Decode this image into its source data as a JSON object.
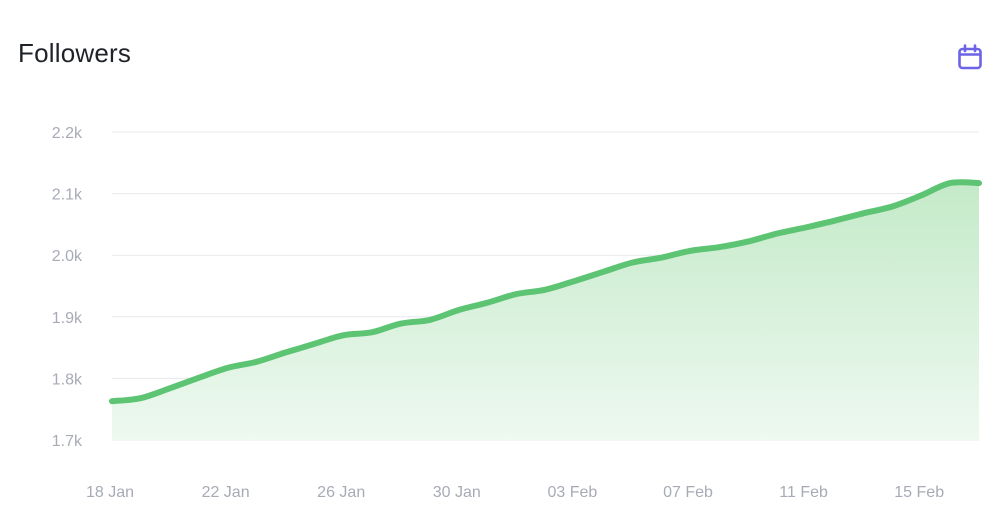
{
  "header": {
    "title": "Followers",
    "calendar_icon": "calendar-icon"
  },
  "colors": {
    "line": "#5cc472",
    "area_top": "#c4eac9",
    "area_bottom": "#eef9f0",
    "grid": "#e6e8ec",
    "tick_text": "#a7abb5",
    "icon": "#6d63e6"
  },
  "chart_data": {
    "type": "area",
    "title": "Followers",
    "xlabel": "",
    "ylabel": "",
    "ylim": [
      1700,
      2200
    ],
    "y_ticks": [
      {
        "value": 1700,
        "label": "1.7k"
      },
      {
        "value": 1800,
        "label": "1.8k"
      },
      {
        "value": 1900,
        "label": "1.9k"
      },
      {
        "value": 2000,
        "label": "2.0k"
      },
      {
        "value": 2100,
        "label": "2.1k"
      },
      {
        "value": 2200,
        "label": "2.2k"
      }
    ],
    "x_ticks": [
      "18 Jan",
      "22 Jan",
      "26 Jan",
      "30 Jan",
      "03 Feb",
      "07 Feb",
      "11 Feb",
      "15 Feb"
    ],
    "grid": true,
    "series": [
      {
        "values": [
          1763,
          1768,
          1784,
          1801,
          1817,
          1827,
          1842,
          1856,
          1870,
          1875,
          1889,
          1895,
          1911,
          1923,
          1937,
          1944,
          1958,
          1973,
          1988,
          1996,
          2007,
          2013,
          2022,
          2035,
          2045,
          2056,
          2068,
          2079,
          2097,
          2117,
          2117
        ]
      }
    ]
  }
}
